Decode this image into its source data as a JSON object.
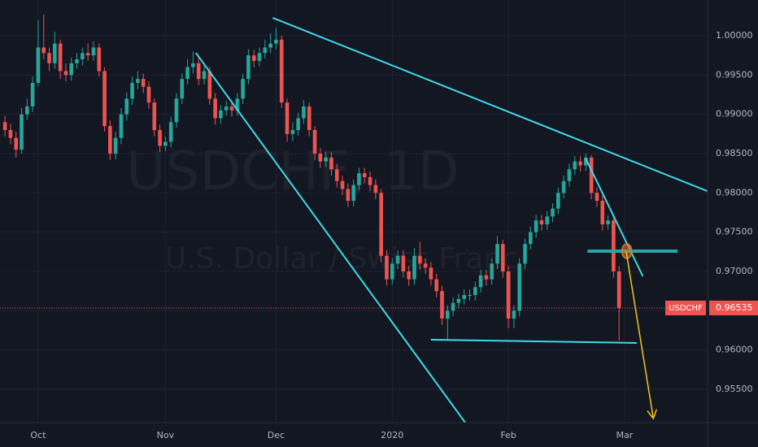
{
  "chart_data": {
    "type": "candlestick",
    "symbol": "USDCHF",
    "watermark": "USDCHF, 1D",
    "description": "U.S. Dollar / Swiss Franc",
    "up_color": "#26a69a",
    "down_color": "#ef5350",
    "grid": true,
    "ylim": [
      0.95076,
      1.00455
    ],
    "xlim": [
      -0.9,
      127
    ],
    "yticks": [
      {
        "value": 0.955,
        "label": "0.95500"
      },
      {
        "value": 0.96,
        "label": "0.96000"
      },
      {
        "value": 0.965,
        "label": "0.96500"
      },
      {
        "value": 0.97,
        "label": "0.97000"
      },
      {
        "value": 0.975,
        "label": "0.97500"
      },
      {
        "value": 0.98,
        "label": "0.98000"
      },
      {
        "value": 0.985,
        "label": "0.98500"
      },
      {
        "value": 0.99,
        "label": "0.99000"
      },
      {
        "value": 0.995,
        "label": "0.99500"
      },
      {
        "value": 1,
        "label": "1.00000"
      }
    ],
    "xticks": [
      {
        "value": 6,
        "label": "Oct"
      },
      {
        "value": 29,
        "label": "Nov"
      },
      {
        "value": 49,
        "label": "Dec"
      },
      {
        "value": 70,
        "label": "2020"
      },
      {
        "value": 91,
        "label": "Feb"
      },
      {
        "value": 112,
        "label": "Mar"
      }
    ],
    "open": [
      0.989,
      0.988,
      0.987,
      0.9855,
      0.99,
      0.991,
      0.994,
      0.9985,
      0.9978,
      0.9965,
      0.999,
      0.9955,
      0.995,
      0.9965,
      0.997,
      0.9978,
      0.9975,
      0.9985,
      0.9955,
      0.9885,
      0.985,
      0.987,
      0.99,
      0.992,
      0.994,
      0.9945,
      0.9935,
      0.9915,
      0.988,
      0.986,
      0.9865,
      0.989,
      0.992,
      0.9945,
      0.996,
      0.9965,
      0.9945,
      0.9955,
      0.992,
      0.9895,
      0.9905,
      0.991,
      0.9905,
      0.992,
      0.9945,
      0.9975,
      0.9968,
      0.9978,
      0.9985,
      0.999,
      0.9995,
      0.9915,
      0.9875,
      0.988,
      0.9895,
      0.991,
      0.988,
      0.985,
      0.984,
      0.9845,
      0.983,
      0.9815,
      0.9805,
      0.979,
      0.981,
      0.9825,
      0.982,
      0.981,
      0.98,
      0.972,
      0.969,
      0.971,
      0.972,
      0.97,
      0.969,
      0.972,
      0.971,
      0.9705,
      0.969,
      0.9675,
      0.964,
      0.965,
      0.966,
      0.9665,
      0.967,
      0.967,
      0.968,
      0.9695,
      0.969,
      0.971,
      0.9735,
      0.97,
      0.964,
      0.965,
      0.971,
      0.9735,
      0.975,
      0.9765,
      0.976,
      0.977,
      0.978,
      0.98,
      0.9815,
      0.983,
      0.984,
      0.9835,
      0.9845,
      0.98,
      0.979,
      0.976,
      0.9765,
      0.97
    ],
    "high": [
      0.9898,
      0.9888,
      0.9878,
      0.9908,
      0.992,
      0.9948,
      1.002,
      1.0027,
      0.9985,
      1.0005,
      0.9995,
      0.9965,
      0.9972,
      0.9978,
      0.9985,
      0.999,
      0.9993,
      0.999,
      0.996,
      0.9892,
      0.9878,
      0.9908,
      0.9928,
      0.9948,
      0.9955,
      0.9952,
      0.9942,
      0.992,
      0.9887,
      0.9872,
      0.9897,
      0.9927,
      0.9952,
      0.997,
      0.998,
      0.9972,
      0.9963,
      0.996,
      0.9927,
      0.9912,
      0.9917,
      0.9917,
      0.9927,
      0.9952,
      0.9983,
      0.9982,
      0.9985,
      0.9995,
      1.0003,
      1.001,
      1,
      0.992,
      0.989,
      0.9902,
      0.9918,
      0.9915,
      0.9885,
      0.9857,
      0.9852,
      0.9852,
      0.9837,
      0.9822,
      0.9812,
      0.9817,
      0.9832,
      0.9832,
      0.9827,
      0.9817,
      0.9805,
      0.9727,
      0.9717,
      0.9727,
      0.9727,
      0.9707,
      0.973,
      0.9738,
      0.9717,
      0.9712,
      0.9697,
      0.9682,
      0.9657,
      0.9667,
      0.9672,
      0.9677,
      0.9677,
      0.9687,
      0.9702,
      0.9702,
      0.9717,
      0.9745,
      0.974,
      0.9707,
      0.9657,
      0.9717,
      0.9742,
      0.9757,
      0.9772,
      0.9772,
      0.9777,
      0.9787,
      0.9807,
      0.9822,
      0.9837,
      0.9847,
      0.9847,
      0.985,
      0.9848,
      0.9807,
      0.9797,
      0.9772,
      0.9772,
      0.9707
    ],
    "low": [
      0.9872,
      0.9862,
      0.9845,
      0.985,
      0.9893,
      0.9903,
      0.9935,
      0.997,
      0.9955,
      0.9958,
      0.9945,
      0.9942,
      0.9943,
      0.9958,
      0.9962,
      0.9968,
      0.9968,
      0.9948,
      0.9878,
      0.9842,
      0.9843,
      0.9862,
      0.9892,
      0.9912,
      0.9932,
      0.9927,
      0.9907,
      0.9872,
      0.9852,
      0.9853,
      0.9858,
      0.9883,
      0.9913,
      0.9938,
      0.9952,
      0.9937,
      0.9938,
      0.9912,
      0.9887,
      0.9888,
      0.9898,
      0.9897,
      0.9898,
      0.9913,
      0.9938,
      0.996,
      0.9961,
      0.9971,
      0.9978,
      0.9983,
      0.9908,
      0.9865,
      0.9866,
      0.9873,
      0.9888,
      0.9872,
      0.9842,
      0.9832,
      0.9833,
      0.9822,
      0.9807,
      0.9797,
      0.9782,
      0.9783,
      0.9803,
      0.9812,
      0.9802,
      0.9792,
      0.9712,
      0.9682,
      0.9683,
      0.9703,
      0.9692,
      0.9682,
      0.9683,
      0.9702,
      0.9697,
      0.9682,
      0.9667,
      0.9632,
      0.9612,
      0.9643,
      0.9653,
      0.9658,
      0.9663,
      0.9663,
      0.9673,
      0.9682,
      0.9683,
      0.9703,
      0.9692,
      0.9628,
      0.9628,
      0.9643,
      0.9703,
      0.9728,
      0.9743,
      0.9752,
      0.9753,
      0.9763,
      0.9773,
      0.9793,
      0.9808,
      0.9823,
      0.9827,
      0.9828,
      0.9792,
      0.9782,
      0.9752,
      0.9753,
      0.9692,
      0.9612
    ],
    "close": [
      0.988,
      0.987,
      0.9855,
      0.99,
      0.991,
      0.994,
      0.9985,
      0.9978,
      0.9965,
      0.999,
      0.9955,
      0.995,
      0.9965,
      0.997,
      0.9978,
      0.9975,
      0.9985,
      0.9955,
      0.9885,
      0.985,
      0.987,
      0.99,
      0.992,
      0.994,
      0.9945,
      0.9935,
      0.9915,
      0.988,
      0.986,
      0.9865,
      0.989,
      0.992,
      0.9945,
      0.996,
      0.9965,
      0.9945,
      0.9955,
      0.992,
      0.9895,
      0.9905,
      0.991,
      0.9905,
      0.992,
      0.9945,
      0.9975,
      0.9968,
      0.9978,
      0.9985,
      0.999,
      0.9995,
      0.9915,
      0.9875,
      0.988,
      0.9895,
      0.991,
      0.988,
      0.985,
      0.984,
      0.9845,
      0.983,
      0.9815,
      0.9805,
      0.979,
      0.981,
      0.9825,
      0.982,
      0.981,
      0.98,
      0.972,
      0.969,
      0.971,
      0.972,
      0.97,
      0.969,
      0.972,
      0.971,
      0.9705,
      0.969,
      0.9675,
      0.964,
      0.965,
      0.966,
      0.9665,
      0.967,
      0.967,
      0.968,
      0.9695,
      0.969,
      0.971,
      0.9735,
      0.97,
      0.964,
      0.965,
      0.971,
      0.9735,
      0.975,
      0.9765,
      0.976,
      0.977,
      0.978,
      0.98,
      0.9815,
      0.983,
      0.984,
      0.9835,
      0.9845,
      0.98,
      0.979,
      0.976,
      0.9765,
      0.97,
      0.96535
    ],
    "trend_lines": [
      {
        "x": [
          48.4,
          136.1
        ],
        "y": [
          1.00228,
          0.97766
        ],
        "color": "#3fd9e8"
      },
      {
        "x": [
          34.5,
          83.2
        ],
        "y": [
          0.99783,
          0.95076
        ],
        "color": "#3fd9e8"
      },
      {
        "x": [
          104.97,
          115.3
        ],
        "y": [
          0.98438,
          0.96938
        ],
        "color": "#3fd9e8"
      },
      {
        "x": [
          77,
          114.2
        ],
        "y": [
          0.96131,
          0.9609
        ],
        "color": "#3fd9e8"
      },
      {
        "x": [
          105.3,
          121.6
        ],
        "y": [
          0.97259,
          0.97259
        ],
        "color": "#26a5a5"
      }
    ],
    "arrow": {
      "x": [
        112.3,
        117.2
      ],
      "y": [
        0.97248,
        0.95128
      ],
      "color": "#f5c518"
    },
    "marker": {
      "x": 112.4,
      "y": 0.97259,
      "color": "#e07a2e"
    }
  }
}
